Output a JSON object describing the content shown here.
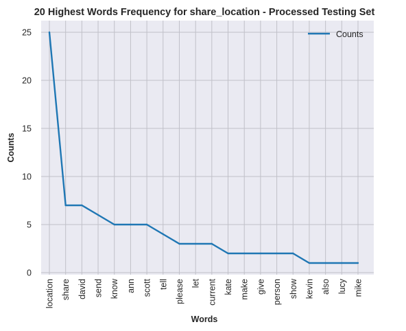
{
  "chart_data": {
    "type": "line",
    "title": "20 Highest Words Frequency for share_location - Processed Testing Set",
    "xlabel": "Words",
    "ylabel": "Counts",
    "categories": [
      "location",
      "share",
      "david",
      "send",
      "know",
      "ann",
      "scott",
      "tell",
      "please",
      "let",
      "current",
      "kate",
      "make",
      "give",
      "person",
      "show",
      "kevin",
      "also",
      "lucy",
      "mike"
    ],
    "series": [
      {
        "name": "Counts",
        "values": [
          25,
          7,
          7,
          6,
          5,
          5,
          5,
          4,
          3,
          3,
          3,
          2,
          2,
          2,
          2,
          2,
          1,
          1,
          1,
          1
        ]
      }
    ],
    "ylim": [
      0,
      25
    ],
    "yticks": [
      "0",
      "5",
      "10",
      "15",
      "20",
      "25"
    ],
    "grid": true,
    "legend_position": "top-right",
    "colors": {
      "line": "#1f77b4",
      "background": "#eaeaf2",
      "grid": "#c0c0c8"
    }
  }
}
